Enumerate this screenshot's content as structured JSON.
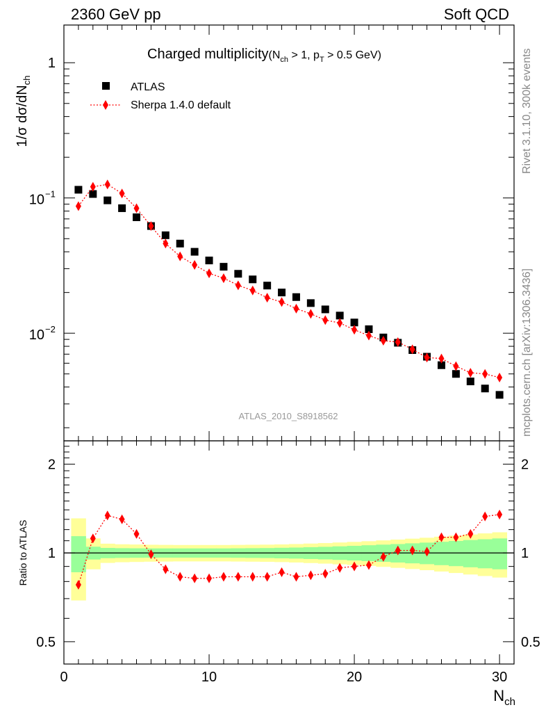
{
  "header": {
    "left": "2360 GeV pp",
    "right": "Soft QCD"
  },
  "side_labels": {
    "rivet": "Rivet 3.1.10,  300k events",
    "mcplots": "mcplots.cern.ch [arXiv:1306.3436]"
  },
  "chart_data": [
    {
      "type": "scatter",
      "panel": "main",
      "title": "Charged multiplicity",
      "title_cuts": {
        "prefix": "(N",
        "sub1": "ch",
        "mid": " > 1, p",
        "sub2": "T",
        "suffix": " > 0.5 GeV)"
      },
      "ylabel": {
        "main": "1/σ dσ/dN",
        "sub": "ch"
      },
      "yscale": "log",
      "ylim": [
        0.0016,
        1.9
      ],
      "yticks": [
        {
          "value": 0.01,
          "base": "10",
          "exp": "−2"
        },
        {
          "value": 0.1,
          "base": "10",
          "exp": "−1"
        },
        {
          "value": 1,
          "label": "1"
        }
      ],
      "xlim": [
        0,
        31
      ],
      "analysis_tag": "ATLAS_2010_S8918562",
      "legend": [
        "ATLAS",
        "Sherpa 1.4.0 default"
      ],
      "series": [
        {
          "name": "ATLAS",
          "marker": "square",
          "color": "#000000",
          "x": [
            1,
            2,
            3,
            4,
            5,
            6,
            7,
            8,
            9,
            10,
            11,
            12,
            13,
            14,
            15,
            16,
            17,
            18,
            19,
            20,
            21,
            22,
            23,
            24,
            25,
            26,
            27,
            28,
            29,
            30
          ],
          "values": [
            0.115,
            0.107,
            0.096,
            0.084,
            0.072,
            0.062,
            0.053,
            0.046,
            0.04,
            0.0345,
            0.031,
            0.0275,
            0.025,
            0.0225,
            0.02,
            0.0185,
            0.0167,
            0.015,
            0.0135,
            0.012,
            0.0107,
            0.0093,
            0.0085,
            0.0075,
            0.0067,
            0.0058,
            0.005,
            0.0044,
            0.0039,
            0.0035
          ]
        },
        {
          "name": "Sherpa 1.4.0 default",
          "marker": "diamond",
          "color": "#ff0000",
          "x": [
            1,
            2,
            3,
            4,
            5,
            6,
            7,
            8,
            9,
            10,
            11,
            12,
            13,
            14,
            15,
            16,
            17,
            18,
            19,
            20,
            21,
            22,
            23,
            24,
            25,
            26,
            27,
            28,
            29,
            30
          ],
          "values": [
            0.087,
            0.121,
            0.126,
            0.108,
            0.084,
            0.062,
            0.046,
            0.037,
            0.032,
            0.0277,
            0.0255,
            0.0226,
            0.0207,
            0.0183,
            0.017,
            0.0152,
            0.0139,
            0.0125,
            0.0119,
            0.0106,
            0.0096,
            0.0088,
            0.0086,
            0.0076,
            0.0066,
            0.0065,
            0.0057,
            0.0051,
            0.005,
            0.0047
          ]
        }
      ]
    },
    {
      "type": "scatter",
      "panel": "ratio",
      "ylabel": "Ratio to ATLAS",
      "xlabel": {
        "main": "N",
        "sub": "ch"
      },
      "yscale": "log",
      "ylim": [
        0.42,
        2.4
      ],
      "yticks": [
        0.5,
        1,
        2
      ],
      "ytick_labels": [
        "0.5",
        "1",
        "2"
      ],
      "xlim": [
        0,
        31
      ],
      "xticks": [
        0,
        10,
        20,
        30
      ],
      "xtick_labels": [
        "0",
        "10",
        "20",
        "30"
      ],
      "reference_line": 1,
      "bands": {
        "x_edges": [
          0.5,
          1.5,
          2.5,
          3.5,
          4.5,
          5.5,
          6.5,
          7.5,
          8.5,
          9.5,
          10.5,
          11.5,
          12.5,
          13.5,
          14.5,
          15.5,
          16.5,
          17.5,
          18.5,
          19.5,
          20.5,
          21.5,
          22.5,
          23.5,
          24.5,
          25.5,
          26.5,
          27.5,
          28.5,
          29.5,
          30.5
        ],
        "stat_sys_half_width": [
          0.31,
          0.12,
          0.075,
          0.07,
          0.068,
          0.066,
          0.065,
          0.064,
          0.064,
          0.064,
          0.064,
          0.065,
          0.066,
          0.067,
          0.069,
          0.072,
          0.076,
          0.08,
          0.085,
          0.09,
          0.096,
          0.103,
          0.11,
          0.118,
          0.126,
          0.135,
          0.145,
          0.155,
          0.165,
          0.175
        ],
        "stat_half_width": [
          0.14,
          0.05,
          0.04,
          0.038,
          0.037,
          0.036,
          0.036,
          0.036,
          0.036,
          0.036,
          0.036,
          0.037,
          0.038,
          0.039,
          0.041,
          0.043,
          0.046,
          0.049,
          0.053,
          0.057,
          0.062,
          0.067,
          0.072,
          0.078,
          0.084,
          0.091,
          0.098,
          0.106,
          0.113,
          0.12
        ],
        "colors": {
          "total": "#ffff99",
          "stat": "#99ff99"
        }
      },
      "series": [
        {
          "name": "Sherpa 1.4.0 default / ATLAS",
          "marker": "diamond",
          "color": "#ff0000",
          "x": [
            1,
            2,
            3,
            4,
            5,
            6,
            7,
            8,
            9,
            10,
            11,
            12,
            13,
            14,
            15,
            16,
            17,
            18,
            19,
            20,
            21,
            22,
            23,
            24,
            25,
            26,
            27,
            28,
            29,
            30
          ],
          "values": [
            0.78,
            1.12,
            1.34,
            1.3,
            1.16,
            0.99,
            0.88,
            0.83,
            0.82,
            0.82,
            0.83,
            0.83,
            0.83,
            0.83,
            0.86,
            0.83,
            0.84,
            0.85,
            0.89,
            0.9,
            0.91,
            0.97,
            1.02,
            1.02,
            1.01,
            1.13,
            1.13,
            1.16,
            1.33,
            1.35
          ]
        }
      ]
    }
  ]
}
